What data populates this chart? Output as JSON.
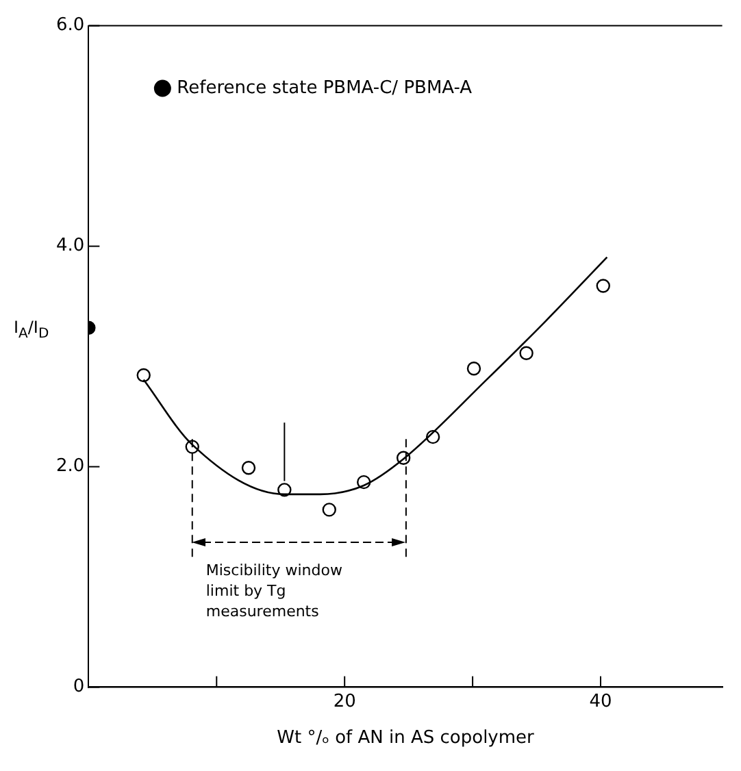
{
  "chart_data": {
    "type": "scatter",
    "xlabel": "Wt °/ₒ of AN in AS copolymer",
    "ylabel": "I$_{A}$/I$_{D}$",
    "xlim": [
      0,
      49.5
    ],
    "xticks": [
      {
        "value": 10,
        "label": null
      },
      20,
      {
        "value": 30,
        "label": null
      },
      40
    ],
    "ylim": [
      0,
      6
    ],
    "yticks": [
      0,
      {
        "value": 2,
        "label": "2.0"
      },
      {
        "value": 4,
        "label": "4.0"
      },
      {
        "value": 6,
        "label": "6.0"
      }
    ],
    "grid": false,
    "legend": "top",
    "marker": "circle",
    "series": [
      {
        "type": "line",
        "color": "#000000",
        "marker": "none",
        "x": [
          4.3,
          8.1,
          15.3,
          18.1,
          21.5,
          24.6,
          31.1,
          35.7,
          40.5
        ],
        "values": [
          2.79,
          2.2,
          1.75,
          1.75,
          1.83,
          2.07,
          2.79,
          3.32,
          3.9
        ]
      },
      {
        "color": "#000000",
        "x": [
          4.3,
          8.1,
          12.5,
          15.3,
          18.8,
          21.5,
          24.6,
          26.9,
          30.1,
          34.2,
          40.2
        ],
        "values": [
          2.83,
          2.18,
          1.99,
          1.79,
          1.61,
          1.86,
          2.08,
          2.27,
          2.89,
          3.03,
          3.64
        ]
      },
      {
        "name": "Reference state PBMA-C/ PBMA-A",
        "color": "#000000",
        "x": [
          0
        ],
        "values": [
          3.26
        ]
      }
    ],
    "ref_lines": [
      {
        "axis": "x",
        "value": 8.1,
        "line_style": "dashed"
      },
      {
        "axis": "x",
        "value": 15.3,
        "line_style": "solid"
      },
      {
        "axis": "x",
        "value": 24.8,
        "line_style": "dashed"
      }
    ],
    "annotations": [
      "Miscibility window limit by Tg measurements"
    ]
  }
}
